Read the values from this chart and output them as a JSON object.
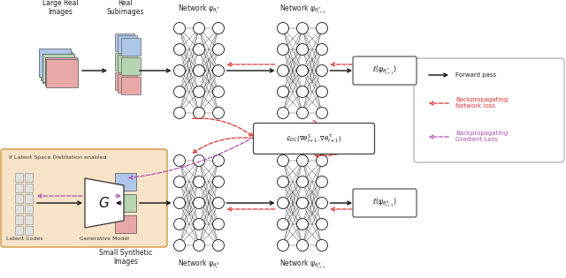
{
  "figsize": [
    6.4,
    3.15
  ],
  "dpi": 100,
  "bg_color": "#ffffff",
  "colors": {
    "blue": "#aec6e8",
    "green": "#b5d5b0",
    "red": "#e8a8a8",
    "orange_bg": "#f7e4c8",
    "orange_border": "#d4953a",
    "arrow_forward": "#111111",
    "arrow_backprop_net": "#e03030",
    "arrow_backprop_grad": "#b050b0",
    "node_fill": "#ffffff",
    "node_edge": "#111111",
    "gray_rect": "#d0d0d0"
  },
  "labels": {
    "large_real": "Large Real\nImages",
    "real_sub": "Real\nSubimages",
    "net_T_t": "Network $\\psi_{\\theta_t^T}$",
    "net_T_t1": "Network $\\psi_{\\theta_{t+1}^T}$",
    "net_S_t": "Network $\\psi_{\\theta_t^S}$",
    "net_S_t1": "Network $\\psi_{\\theta_{t+1}^S}$",
    "loss_T": "$\\ell(\\psi_{\\theta_{t+1}^T})$",
    "loss_S": "$\\ell(\\psi_{\\theta_{t+1}^S})$",
    "ldc": "$\\mathcal{L}_{DC}(\\nabla\\theta_{t+1}^S, \\nabla\\theta_{t+1}^T)$",
    "latent_codes": "Latent Codes",
    "gen_model": "Generative Model",
    "small_synth": "Small Synthetic\nImages",
    "latent_space": "If Latent Space Distillation enabled",
    "G": "$G$",
    "legend_forward": "Forward pass",
    "legend_backnet": "Backpropagating\nNetwork loss",
    "legend_backgrad": "Backpropagating\nGradient Loss"
  },
  "xlim": [
    0,
    6.4
  ],
  "ylim": [
    0,
    3.15
  ]
}
